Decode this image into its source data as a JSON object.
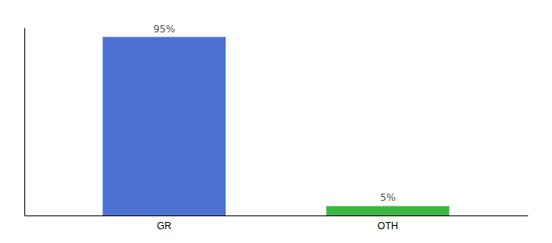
{
  "chart_data": {
    "type": "bar",
    "categories": [
      "GR",
      "OTH"
    ],
    "values": [
      95,
      5
    ],
    "value_labels": [
      "95%",
      "5%"
    ],
    "colors": [
      "#4d72d4",
      "#3cb843"
    ],
    "ylim": [
      0,
      100
    ],
    "data_labels": true,
    "tick_labels": "x"
  }
}
